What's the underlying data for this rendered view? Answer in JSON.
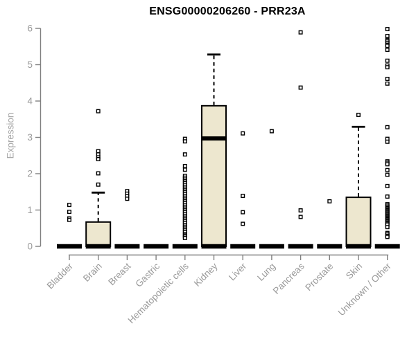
{
  "chart_data": {
    "type": "boxplot",
    "title": "ENSG00000206260 - PRR23A",
    "ylabel": "Expression",
    "ylim": [
      0,
      6
    ],
    "yticks": [
      0,
      1,
      2,
      3,
      4,
      5,
      6
    ],
    "grid": false,
    "legend": "none",
    "colors": {
      "box_fill": "#ede7cf",
      "box_border": "#000000",
      "median": "#000000",
      "outlier": "#000000",
      "axis": "#808080",
      "tick_label": "#999999",
      "ylabel_color": "#a8a8a8",
      "title_color": "#000000"
    },
    "categories": [
      "Bladder",
      "Brain",
      "Breast",
      "Gastric",
      "Hematopoietic cells",
      "Kidney",
      "Liver",
      "Lung",
      "Pancreas",
      "Prostate",
      "Skin",
      "Unknown / Other"
    ],
    "boxes": [
      {
        "label": "Bladder",
        "q1": 0,
        "median": 0,
        "q3": 0,
        "whisker_low": 0,
        "whisker_high": 0,
        "outliers": [
          1.14,
          0.95,
          0.77,
          0.73
        ]
      },
      {
        "label": "Brain",
        "q1": 0,
        "median": 0,
        "q3": 0.67,
        "whisker_low": 0,
        "whisker_high": 1.48,
        "outliers": [
          3.72,
          2.62,
          2.53,
          2.45,
          2.4,
          2.01,
          1.7
        ]
      },
      {
        "label": "Breast",
        "q1": 0,
        "median": 0,
        "q3": 0,
        "whisker_low": 0,
        "whisker_high": 0,
        "outliers": [
          1.52,
          1.45,
          1.38,
          1.31
        ]
      },
      {
        "label": "Gastric",
        "q1": 0,
        "median": 0,
        "q3": 0,
        "whisker_low": 0,
        "whisker_high": 0,
        "outliers": []
      },
      {
        "label": "Hematopoietic cells",
        "q1": 0,
        "median": 0,
        "q3": 0,
        "whisker_low": 0,
        "whisker_high": 0,
        "outliers": [
          2.96,
          2.89,
          2.53,
          2.21,
          2.11,
          1.94,
          1.89,
          1.84,
          1.79,
          1.74,
          1.69,
          1.64,
          1.59,
          1.54,
          1.49,
          1.44,
          1.39,
          1.34,
          1.29,
          1.24,
          1.19,
          1.14,
          1.09,
          1.04,
          0.99,
          0.94,
          0.89,
          0.84,
          0.79,
          0.74,
          0.69,
          0.64,
          0.59,
          0.54,
          0.49,
          0.44,
          0.39,
          0.34,
          0.3,
          0.27,
          0.23
        ]
      },
      {
        "label": "Kidney",
        "q1": 0,
        "median": 2.97,
        "q3": 3.87,
        "whisker_low": 0,
        "whisker_high": 5.28,
        "outliers": []
      },
      {
        "label": "Liver",
        "q1": 0,
        "median": 0,
        "q3": 0,
        "whisker_low": 0,
        "whisker_high": 0,
        "outliers": [
          3.11,
          1.39,
          0.94,
          0.62
        ]
      },
      {
        "label": "Lung",
        "q1": 0,
        "median": 0,
        "q3": 0,
        "whisker_low": 0,
        "whisker_high": 0,
        "outliers": [
          3.17
        ]
      },
      {
        "label": "Pancreas",
        "q1": 0,
        "median": 0,
        "q3": 0,
        "whisker_low": 0,
        "whisker_high": 0,
        "outliers": [
          5.89,
          4.37,
          0.99,
          0.81
        ]
      },
      {
        "label": "Prostate",
        "q1": 0,
        "median": 0,
        "q3": 0,
        "whisker_low": 0,
        "whisker_high": 0,
        "outliers": [
          1.24
        ]
      },
      {
        "label": "Skin",
        "q1": 0,
        "median": 0,
        "q3": 1.35,
        "whisker_low": 0,
        "whisker_high": 3.29,
        "outliers": [
          3.62
        ]
      },
      {
        "label": "Unknown / Other",
        "q1": 0,
        "median": 0,
        "q3": 0,
        "whisker_low": 0,
        "whisker_high": 0,
        "outliers": [
          5.98,
          5.79,
          5.68,
          5.64,
          5.6,
          5.55,
          5.52,
          5.41,
          5.11,
          4.98,
          4.93,
          4.61,
          4.48,
          3.28,
          2.96,
          2.88,
          2.34,
          2.3,
          2.26,
          2.1,
          1.97,
          1.66,
          1.37,
          1.16,
          1.12,
          1.08,
          1.05,
          1.02,
          0.99,
          0.96,
          0.93,
          0.9,
          0.87,
          0.84,
          0.81,
          0.78,
          0.75,
          0.72,
          0.69,
          0.66,
          0.63,
          0.6,
          0.53,
          0.37,
          0.33,
          0.29,
          0.26
        ]
      }
    ]
  }
}
